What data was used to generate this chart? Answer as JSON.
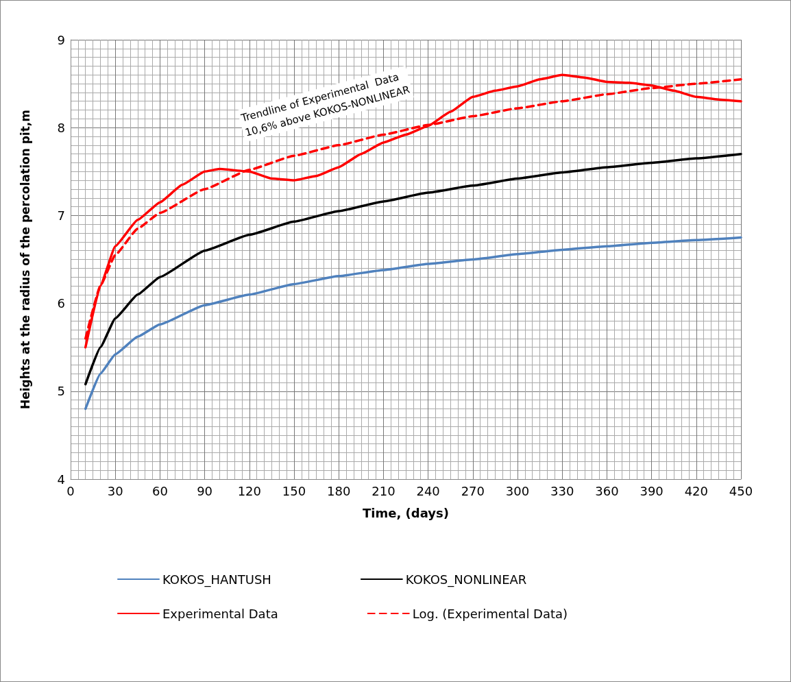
{
  "chart_data": {
    "type": "line",
    "xlabel": "Time, (days)",
    "ylabel": "Heights at the radius of the percolation pit,m",
    "xlim": [
      0,
      450
    ],
    "xticks": [
      0,
      30,
      60,
      90,
      120,
      150,
      180,
      210,
      240,
      270,
      300,
      330,
      360,
      390,
      420,
      450
    ],
    "ylim": [
      4,
      9
    ],
    "yticks": [
      4,
      5,
      6,
      7,
      8,
      9
    ],
    "grid": true,
    "legend": "bottom",
    "marker": "none",
    "annotations": [
      "Trendline of Experimental  Data",
      "10,6% above KOKOS-NONLINEAR"
    ],
    "series": [
      {
        "name": "KOKOS_HANTUSH",
        "color": "#4f81bd",
        "x": [
          10,
          20,
          30,
          45,
          60,
          90,
          120,
          150,
          180,
          210,
          240,
          270,
          300,
          330,
          360,
          390,
          420,
          450
        ],
        "values": [
          4.8,
          5.2,
          5.42,
          5.62,
          5.76,
          5.98,
          6.1,
          6.22,
          6.31,
          6.38,
          6.45,
          6.5,
          6.56,
          6.61,
          6.65,
          6.69,
          6.72,
          6.75
        ]
      },
      {
        "name": "KOKOS_NONLINEAR",
        "color": "#000000",
        "x": [
          10,
          20,
          30,
          45,
          60,
          90,
          120,
          150,
          180,
          210,
          240,
          270,
          300,
          330,
          360,
          390,
          420,
          450
        ],
        "values": [
          5.08,
          5.5,
          5.83,
          6.1,
          6.3,
          6.6,
          6.78,
          6.93,
          7.05,
          7.16,
          7.26,
          7.34,
          7.42,
          7.49,
          7.55,
          7.6,
          7.65,
          7.7
        ]
      },
      {
        "name": "Experimental Data",
        "color": "#ff0000",
        "x": [
          10,
          20,
          30,
          45,
          60,
          75,
          90,
          100,
          120,
          135,
          150,
          165,
          180,
          195,
          210,
          225,
          240,
          255,
          270,
          285,
          300,
          315,
          330,
          345,
          360,
          375,
          390,
          405,
          420,
          435,
          450
        ],
        "values": [
          5.5,
          6.2,
          6.65,
          6.95,
          7.15,
          7.35,
          7.5,
          7.53,
          7.5,
          7.42,
          7.4,
          7.45,
          7.55,
          7.7,
          7.83,
          7.92,
          8.02,
          8.18,
          8.35,
          8.42,
          8.47,
          8.55,
          8.6,
          8.57,
          8.52,
          8.51,
          8.48,
          8.42,
          8.35,
          8.32,
          8.3
        ]
      },
      {
        "name": "Log. (Experimental Data)",
        "color": "#ff0000",
        "line_style": "dashed",
        "x": [
          10,
          20,
          30,
          45,
          60,
          90,
          120,
          150,
          180,
          210,
          240,
          270,
          300,
          330,
          360,
          390,
          420,
          450
        ],
        "values": [
          5.6,
          6.2,
          6.55,
          6.85,
          7.03,
          7.3,
          7.52,
          7.68,
          7.8,
          7.92,
          8.03,
          8.13,
          8.22,
          8.3,
          8.38,
          8.45,
          8.5,
          8.55
        ]
      }
    ]
  }
}
